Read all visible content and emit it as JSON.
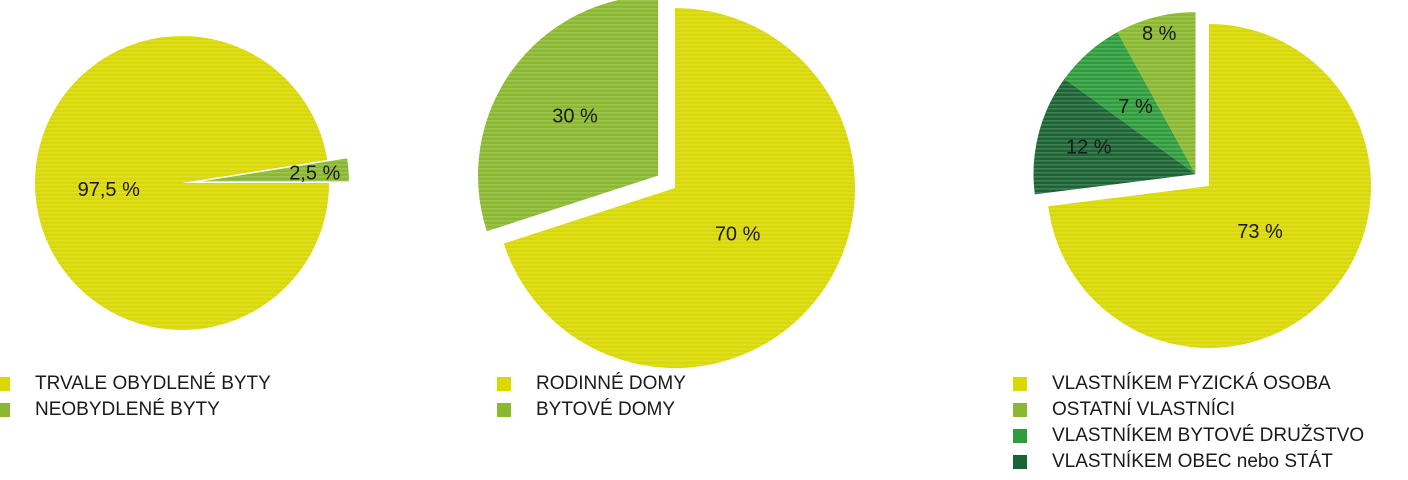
{
  "colors": {
    "yellow": "#d9d800",
    "light_green": "#8ab82e",
    "mid_green": "#2e9e3c",
    "dark_green": "#1b6534",
    "text": "#1a1a1a"
  },
  "chart_data": [
    {
      "type": "pie",
      "slices": [
        {
          "label": "TRVALE OBYDLENÉ BYTY",
          "value": 97.5,
          "value_label": "97,5 %",
          "color": "#d9d800",
          "exploded": false
        },
        {
          "label": "NEOBYDLENÉ BYTY",
          "value": 2.5,
          "value_label": "2,5 %",
          "color": "#8ab82e",
          "exploded": true
        }
      ],
      "legend": [
        "TRVALE OBYDLENÉ BYTY",
        "NEOBYDLENÉ BYTY"
      ],
      "legend_placement": "bottom"
    },
    {
      "type": "pie",
      "slices": [
        {
          "label": "RODINNÉ DOMY",
          "value": 70,
          "value_label": "70 %",
          "color": "#d9d800",
          "exploded": false
        },
        {
          "label": "BYTOVÉ DOMY",
          "value": 30,
          "value_label": "30 %",
          "color": "#8ab82e",
          "exploded": true
        }
      ],
      "legend": [
        "RODINNÉ DOMY",
        "BYTOVÉ DOMY"
      ],
      "legend_placement": "bottom"
    },
    {
      "type": "pie",
      "slices": [
        {
          "label": "VLASTNÍKEM FYZICKÁ OSOBA",
          "value": 73,
          "value_label": "73 %",
          "color": "#d9d800",
          "exploded": false
        },
        {
          "label": "VLASTNÍKEM OBEC nebo STÁT",
          "value": 12,
          "value_label": "12 %",
          "color": "#1b6534",
          "exploded": true
        },
        {
          "label": "VLASTNÍKEM BYTOVÉ DRUŽSTVO",
          "value": 7,
          "value_label": "7 %",
          "color": "#2e9e3c",
          "exploded": true
        },
        {
          "label": "OSTATNÍ VLASTNÍCI",
          "value": 8,
          "value_label": "8 %",
          "color": "#8ab82e",
          "exploded": true
        }
      ],
      "legend": [
        "VLASTNÍKEM FYZICKÁ OSOBA",
        "OSTATNÍ VLASTNÍCI",
        "VLASTNÍKEM BYTOVÉ DRUŽSTVO",
        "VLASTNÍKEM OBEC nebo STÁT"
      ],
      "legend_placement": "bottom"
    }
  ]
}
